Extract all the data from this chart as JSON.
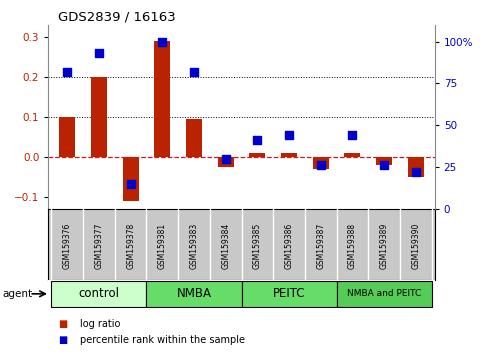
{
  "title": "GDS2839 / 16163",
  "samples": [
    "GSM159376",
    "GSM159377",
    "GSM159378",
    "GSM159381",
    "GSM159383",
    "GSM159384",
    "GSM159385",
    "GSM159386",
    "GSM159387",
    "GSM159388",
    "GSM159389",
    "GSM159390"
  ],
  "log_ratio": [
    0.1,
    0.2,
    -0.11,
    0.29,
    0.095,
    -0.025,
    0.01,
    0.01,
    -0.03,
    0.01,
    -0.02,
    -0.05
  ],
  "percentile_rank": [
    82,
    93,
    15,
    100,
    82,
    30,
    41,
    44,
    26,
    44,
    26,
    22
  ],
  "groups": [
    {
      "label": "control",
      "start": 0,
      "end": 3,
      "color": "#ccffcc"
    },
    {
      "label": "NMBA",
      "start": 3,
      "end": 6,
      "color": "#66dd66"
    },
    {
      "label": "PEITC",
      "start": 6,
      "end": 9,
      "color": "#66dd66"
    },
    {
      "label": "NMBA and PEITC",
      "start": 9,
      "end": 12,
      "color": "#66dd66"
    }
  ],
  "ylim_left": [
    -0.13,
    0.33
  ],
  "ylim_right": [
    0,
    110
  ],
  "yticks_left": [
    -0.1,
    0.0,
    0.1,
    0.2,
    0.3
  ],
  "yticks_right": [
    0,
    25,
    50,
    75,
    100
  ],
  "bar_color": "#bb2200",
  "dot_color": "#0000cc",
  "hline_color": "#cc0000",
  "dotted_line_color": "#000000",
  "bg_color": "#ffffff",
  "bar_width": 0.5,
  "dot_size": 28
}
